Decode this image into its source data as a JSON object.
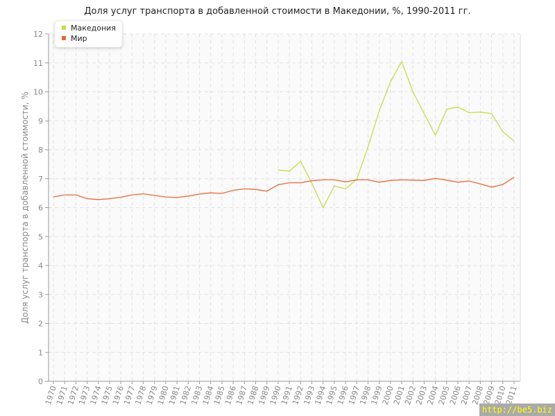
{
  "chart_data": {
    "type": "line",
    "title": "Доля услуг транспорта в добавленной стоимости в Македонии, %, 1990-2011 гг.",
    "xlabel": "",
    "ylabel": "Доля услуг транспорта в добавленной стоимости, %",
    "xlim": [
      1970,
      2011
    ],
    "ylim": [
      0,
      12
    ],
    "yticks": [
      0,
      1,
      2,
      3,
      4,
      5,
      6,
      7,
      8,
      9,
      10,
      11,
      12
    ],
    "grid": true,
    "legend": "top-left",
    "x": [
      1970,
      1971,
      1972,
      1973,
      1974,
      1975,
      1976,
      1977,
      1978,
      1979,
      1980,
      1981,
      1982,
      1983,
      1984,
      1985,
      1986,
      1987,
      1988,
      1989,
      1990,
      1991,
      1992,
      1993,
      1994,
      1995,
      1996,
      1997,
      1998,
      1999,
      2000,
      2001,
      2002,
      2003,
      2004,
      2005,
      2006,
      2007,
      2008,
      2009,
      2010,
      2011
    ],
    "series": [
      {
        "name": "Македония",
        "color": "#c8dc4a",
        "values": [
          null,
          null,
          null,
          null,
          null,
          null,
          null,
          null,
          null,
          null,
          null,
          null,
          null,
          null,
          null,
          null,
          null,
          null,
          null,
          null,
          7.3,
          7.26,
          7.6,
          6.85,
          6.0,
          6.75,
          6.65,
          6.98,
          8.1,
          9.35,
          10.35,
          11.05,
          10.0,
          9.25,
          8.5,
          9.4,
          9.47,
          9.28,
          9.3,
          9.25,
          8.62,
          8.3
        ]
      },
      {
        "name": "Мир",
        "color": "#e8683a",
        "values": [
          6.37,
          6.44,
          6.44,
          6.31,
          6.28,
          6.31,
          6.36,
          6.44,
          6.48,
          6.42,
          6.37,
          6.35,
          6.4,
          6.47,
          6.51,
          6.49,
          6.6,
          6.65,
          6.63,
          6.57,
          6.79,
          6.86,
          6.86,
          6.93,
          6.96,
          6.96,
          6.89,
          6.96,
          6.96,
          6.88,
          6.94,
          6.96,
          6.95,
          6.94,
          7.01,
          6.95,
          6.88,
          6.92,
          6.82,
          6.71,
          6.8,
          7.05
        ]
      }
    ]
  },
  "watermark": "http://be5.biz"
}
